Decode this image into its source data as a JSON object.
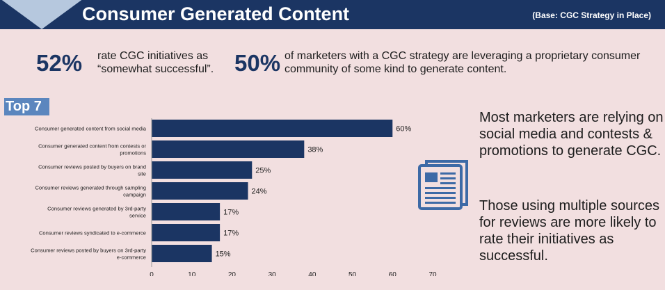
{
  "header": {
    "title": "Consumer Generated Content",
    "base": "(Base: CGC Strategy in Place)"
  },
  "stats": [
    {
      "value": "52%",
      "text": "rate CGC initiatives as “somewhat successful”."
    },
    {
      "value": "50%",
      "text": "of marketers with a CGC strategy are leveraging a proprietary consumer community of some kind to generate content."
    }
  ],
  "top_label": "Top 7",
  "side_text": {
    "p1": "Most marketers are relying on social media and contests & promotions to generate CGC.",
    "p2": "Those using multiple sources for reviews are more likely to rate their initiatives as successful."
  },
  "colors": {
    "bar": "#1b3563",
    "header": "#1b3563",
    "accent": "#5b86be",
    "background": "#f2dfe0"
  },
  "icon": "newspaper-icon",
  "chart_data": {
    "type": "bar",
    "orientation": "horizontal",
    "categories": [
      [
        "Consumer generated content from social media"
      ],
      [
        "Consumer generated content from contests or",
        "promotions"
      ],
      [
        "Consumer reviews posted by buyers on brand",
        "site"
      ],
      [
        "Consumer reviews generated through sampling",
        "campaign"
      ],
      [
        "Consumer reviews generated by 3rd-party",
        "service"
      ],
      [
        "Consumer reviews syndicated to e-commerce"
      ],
      [
        "Consumer reviews posted by buyers on 3rd-party",
        "e-commerce"
      ]
    ],
    "values": [
      60,
      38,
      25,
      24,
      17,
      17,
      15
    ],
    "data_labels": [
      "60%",
      "38%",
      "25%",
      "24%",
      "17%",
      "17%",
      "15%"
    ],
    "xlim": [
      0,
      70
    ],
    "xticks": [
      0,
      10,
      20,
      30,
      40,
      50,
      60,
      70
    ],
    "grid": false
  }
}
